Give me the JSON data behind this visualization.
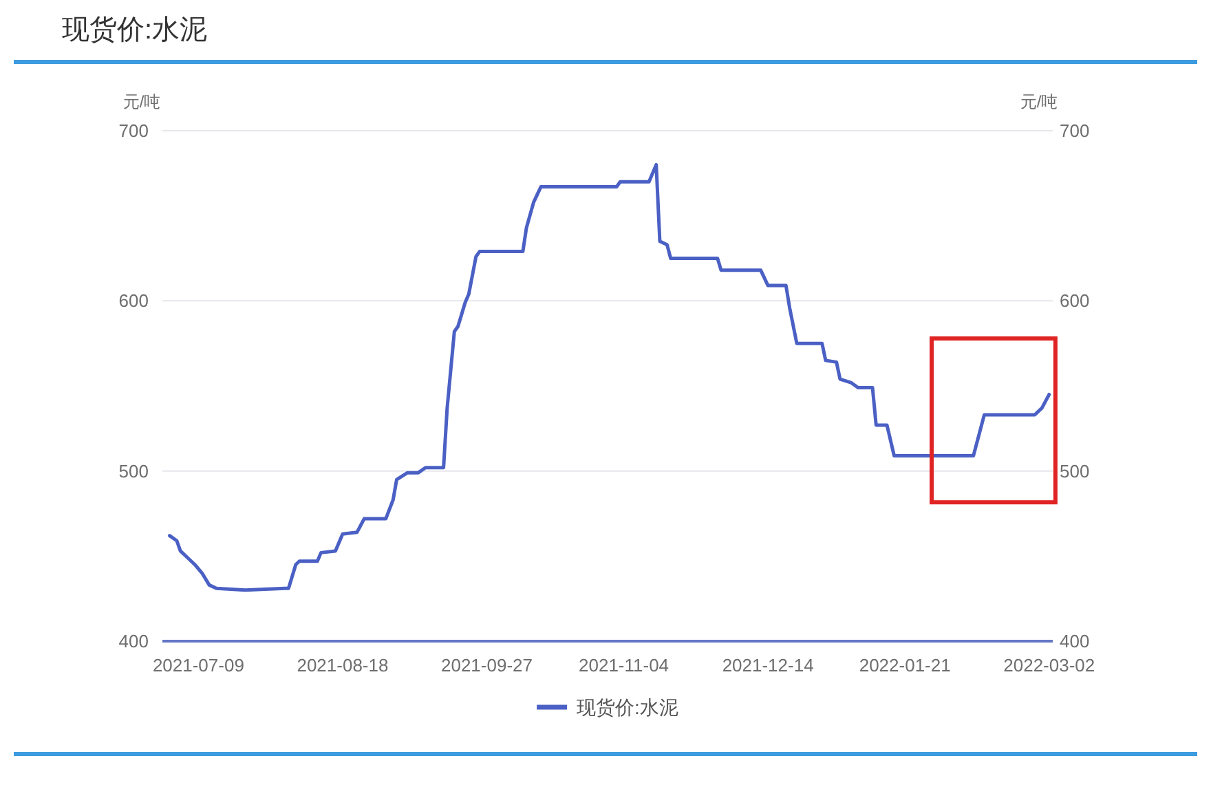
{
  "chart_data": {
    "type": "line",
    "title": "现货价:水泥",
    "ylabel": "元/吨",
    "y2label": "元/吨",
    "x": [
      "2021-07-01",
      "2021-07-03",
      "2021-07-04",
      "2021-07-06",
      "2021-07-08",
      "2021-07-10",
      "2021-07-12",
      "2021-07-14",
      "2021-07-22",
      "2021-08-02",
      "2021-08-03",
      "2021-08-05",
      "2021-08-06",
      "2021-08-11",
      "2021-08-12",
      "2021-08-16",
      "2021-08-18",
      "2021-08-22",
      "2021-08-24",
      "2021-08-30",
      "2021-09-01",
      "2021-09-02",
      "2021-09-05",
      "2021-09-08",
      "2021-09-10",
      "2021-09-15",
      "2021-09-16",
      "2021-09-18",
      "2021-09-19",
      "2021-09-21",
      "2021-09-22",
      "2021-09-24",
      "2021-09-25",
      "2021-10-07",
      "2021-10-08",
      "2021-10-10",
      "2021-10-12",
      "2021-11-02",
      "2021-11-03",
      "2021-11-11",
      "2021-11-13",
      "2021-11-14",
      "2021-11-16",
      "2021-11-17",
      "2021-11-30",
      "2021-12-01",
      "2021-12-12",
      "2021-12-14",
      "2021-12-19",
      "2021-12-20",
      "2021-12-22",
      "2021-12-29",
      "2021-12-30",
      "2022-01-02",
      "2022-01-03",
      "2022-01-06",
      "2022-01-08",
      "2022-01-12",
      "2022-01-13",
      "2022-01-16",
      "2022-01-18",
      "2022-02-09",
      "2022-02-12",
      "2022-02-26",
      "2022-02-28",
      "2022-03-02"
    ],
    "series": [
      {
        "name": "现货价:水泥",
        "color": "#4b60c4",
        "values": [
          462,
          459,
          453,
          449,
          445,
          440,
          433,
          431,
          430,
          431,
          431,
          445,
          447,
          447,
          452,
          453,
          463,
          464,
          472,
          472,
          483,
          495,
          499,
          499,
          502,
          502,
          537,
          582,
          585,
          599,
          604,
          626,
          629,
          629,
          643,
          658,
          667,
          667,
          670,
          670,
          680,
          635,
          633,
          625,
          625,
          618,
          618,
          609,
          609,
          596,
          575,
          575,
          565,
          564,
          554,
          552,
          549,
          549,
          527,
          527,
          509,
          509,
          533,
          533,
          537,
          545
        ]
      }
    ],
    "xlim": [
      "2021-06-29",
      "2022-03-03"
    ],
    "xticks": [
      "2021-07-09",
      "2021-08-18",
      "2021-09-27",
      "2021-11-04",
      "2021-12-14",
      "2022-01-21",
      "2022-03-02"
    ],
    "ylim": [
      400,
      700
    ],
    "yticks": [
      400,
      500,
      600,
      700
    ],
    "y2lim": [
      400,
      700
    ],
    "y2ticks": [
      400,
      500,
      600,
      700
    ],
    "grid": "y",
    "legend": "bottom"
  }
}
